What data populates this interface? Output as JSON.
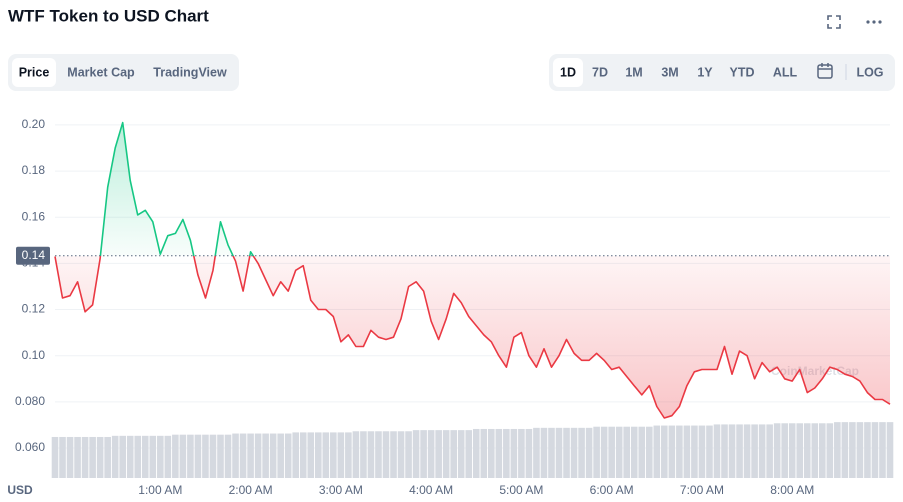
{
  "ui": {
    "title": "WTF Token to USD Chart",
    "tabs": [
      "Price",
      "Market Cap",
      "TradingView"
    ],
    "ranges": [
      "1D",
      "7D",
      "1M",
      "3M",
      "1Y",
      "YTD",
      "ALL"
    ],
    "log": "LOG",
    "currency": "USD",
    "watermark": "CoinMarketCap"
  },
  "chart_data": {
    "type": "line",
    "x": [
      -10,
      -5,
      0,
      5,
      10,
      15,
      20,
      25,
      30,
      35,
      40,
      45,
      50,
      55,
      60,
      65,
      70,
      75,
      80,
      85,
      90,
      95,
      100,
      105,
      110,
      115,
      120,
      125,
      130,
      135,
      140,
      145,
      150,
      155,
      160,
      165,
      170,
      175,
      180,
      185,
      190,
      195,
      200,
      205,
      210,
      215,
      220,
      225,
      230,
      235,
      240,
      245,
      250,
      255,
      260,
      265,
      270,
      275,
      280,
      285,
      290,
      295,
      300,
      305,
      310,
      315,
      320,
      325,
      330,
      335,
      340,
      345,
      350,
      355,
      360,
      365,
      370,
      375,
      380,
      385,
      390,
      395,
      400,
      405,
      410,
      415,
      420,
      425,
      430,
      435,
      440,
      445,
      450,
      455,
      460,
      465,
      470,
      475,
      480,
      485,
      490,
      495,
      500,
      505,
      510,
      515,
      520,
      525,
      530,
      535,
      540,
      545
    ],
    "series": [
      {
        "name": "Price",
        "color": "#ea3943",
        "up_color": "#16c784",
        "values": [
          0.143,
          0.125,
          0.126,
          0.132,
          0.119,
          0.122,
          0.142,
          0.173,
          0.19,
          0.201,
          0.176,
          0.161,
          0.163,
          0.158,
          0.144,
          0.152,
          0.153,
          0.159,
          0.15,
          0.135,
          0.125,
          0.137,
          0.158,
          0.148,
          0.141,
          0.128,
          0.145,
          0.14,
          0.133,
          0.126,
          0.132,
          0.128,
          0.137,
          0.139,
          0.124,
          0.12,
          0.12,
          0.117,
          0.106,
          0.109,
          0.104,
          0.104,
          0.111,
          0.108,
          0.107,
          0.108,
          0.116,
          0.13,
          0.132,
          0.128,
          0.115,
          0.107,
          0.116,
          0.127,
          0.123,
          0.117,
          0.113,
          0.109,
          0.106,
          0.1,
          0.095,
          0.108,
          0.11,
          0.1,
          0.095,
          0.103,
          0.095,
          0.1,
          0.107,
          0.101,
          0.098,
          0.098,
          0.101,
          0.098,
          0.094,
          0.095,
          0.091,
          0.087,
          0.083,
          0.087,
          0.078,
          0.073,
          0.074,
          0.078,
          0.087,
          0.093,
          0.094,
          0.094,
          0.094,
          0.104,
          0.092,
          0.102,
          0.1,
          0.09,
          0.097,
          0.093,
          0.095,
          0.09,
          0.089,
          0.094,
          0.084,
          0.086,
          0.09,
          0.095,
          0.094,
          0.092,
          0.091,
          0.089,
          0.084,
          0.081,
          0.081,
          0.079
        ]
      },
      {
        "name": "Volume",
        "color": "#d5d9e0",
        "axis": "y2",
        "values": [
          72,
          72,
          72,
          72,
          72,
          72,
          72,
          72,
          74,
          74,
          74,
          74,
          74,
          74,
          74,
          74,
          76,
          76,
          76,
          76,
          76,
          76,
          76,
          76,
          78,
          78,
          78,
          78,
          78,
          78,
          78,
          78,
          80,
          80,
          80,
          80,
          80,
          80,
          80,
          80,
          82,
          82,
          82,
          82,
          82,
          82,
          82,
          82,
          84,
          84,
          84,
          84,
          84,
          84,
          84,
          84,
          86,
          86,
          86,
          86,
          86,
          86,
          86,
          86,
          88,
          88,
          88,
          88,
          88,
          88,
          88,
          88,
          90,
          90,
          90,
          90,
          90,
          90,
          90,
          90,
          92,
          92,
          92,
          92,
          92,
          92,
          92,
          92,
          94,
          94,
          94,
          94,
          94,
          94,
          94,
          94,
          96,
          96,
          96,
          96,
          96,
          96,
          96,
          96,
          98,
          98,
          98,
          98,
          98,
          98,
          98,
          98
        ]
      }
    ],
    "reference": {
      "value": 0.1433,
      "label": "0.14"
    },
    "xlim": [
      -10,
      545
    ],
    "xticks": [
      {
        "value": 60,
        "label": "1:00 AM"
      },
      {
        "value": 120,
        "label": "2:00 AM"
      },
      {
        "value": 180,
        "label": "3:00 AM"
      },
      {
        "value": 240,
        "label": "4:00 AM"
      },
      {
        "value": 300,
        "label": "5:00 AM"
      },
      {
        "value": 360,
        "label": "6:00 AM"
      },
      {
        "value": 420,
        "label": "7:00 AM"
      },
      {
        "value": 480,
        "label": "8:00 AM"
      }
    ],
    "ylim": [
      0.047,
      0.2108
    ],
    "yticks": [
      {
        "value": 0.06,
        "label": "0.060"
      },
      {
        "value": 0.08,
        "label": "0.080"
      },
      {
        "value": 0.1,
        "label": "0.10"
      },
      {
        "value": 0.12,
        "label": "0.12"
      },
      {
        "value": 0.14,
        "label": "0.14"
      },
      {
        "value": 0.16,
        "label": "0.16"
      },
      {
        "value": 0.18,
        "label": "0.18"
      },
      {
        "value": 0.2,
        "label": "0.20"
      }
    ],
    "y2lim": [
      0,
      100
    ],
    "grid": true
  }
}
